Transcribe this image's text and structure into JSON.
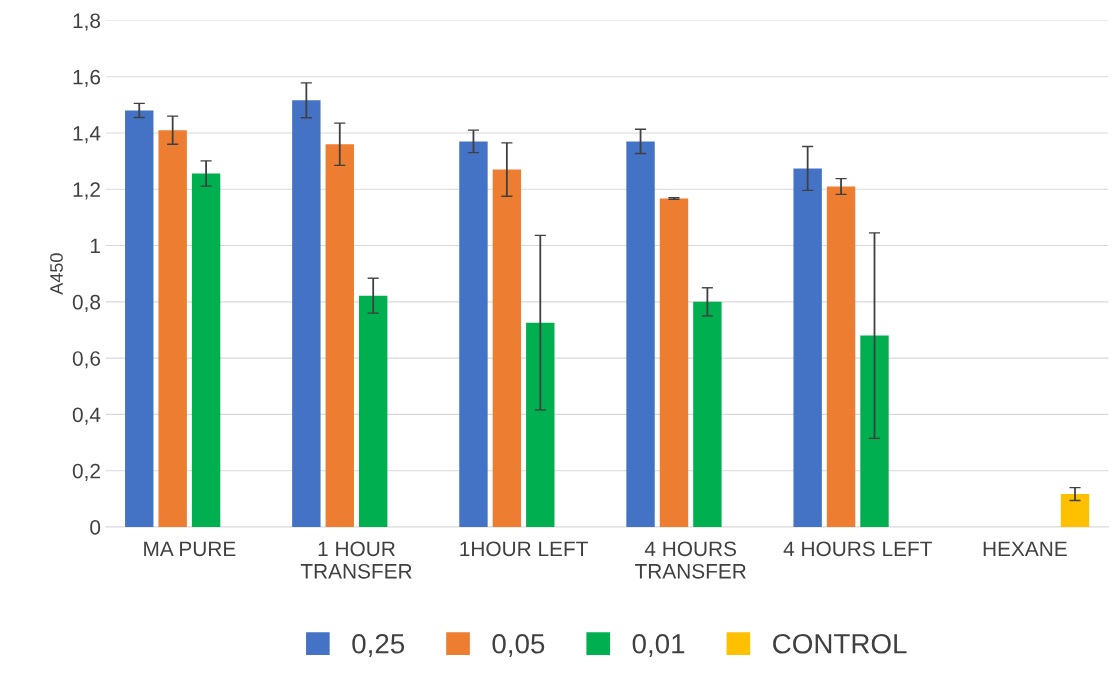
{
  "chart_data": {
    "type": "bar",
    "ylabel": "A450",
    "categories": [
      "MA PURE",
      "1 HOUR\nTRANSFER",
      "1HOUR LEFT",
      "4 HOURS\nTRANSFER",
      "4 HOURS LEFT",
      "HEXANE"
    ],
    "series": [
      {
        "name": "0,25",
        "color": "#4472c4",
        "values": [
          1.48,
          1.516,
          1.37,
          1.37,
          1.274,
          null
        ],
        "errors": [
          0.025,
          0.062,
          0.04,
          0.043,
          0.078,
          null
        ]
      },
      {
        "name": "0,05",
        "color": "#ed7d31",
        "values": [
          1.41,
          1.36,
          1.27,
          1.167,
          1.21,
          null
        ],
        "errors": [
          0.05,
          0.075,
          0.095,
          0.003,
          0.028,
          null
        ]
      },
      {
        "name": "0,01",
        "color": "#00b050",
        "values": [
          1.256,
          0.822,
          0.726,
          0.8,
          0.68,
          null
        ],
        "errors": [
          0.045,
          0.062,
          0.31,
          0.05,
          0.365,
          null
        ]
      },
      {
        "name": "CONTROL",
        "color": "#ffc000",
        "values": [
          null,
          null,
          null,
          null,
          null,
          0.117
        ],
        "errors": [
          null,
          null,
          null,
          null,
          null,
          0.023
        ]
      }
    ],
    "ylim": [
      0,
      1.8
    ],
    "yticks": [
      0,
      {
        "value": 0.2,
        "label": "0,2"
      },
      {
        "value": 0.4,
        "label": "0,4"
      },
      {
        "value": 0.6,
        "label": "0,6"
      },
      {
        "value": 0.8,
        "label": "0,8"
      },
      1,
      {
        "value": 1.2,
        "label": "1,2"
      },
      {
        "value": 1.4,
        "label": "1,4"
      },
      {
        "value": 1.6,
        "label": "1,6"
      },
      {
        "value": 1.8,
        "label": "1,8"
      }
    ],
    "grid": "y",
    "legend": "bottom"
  }
}
